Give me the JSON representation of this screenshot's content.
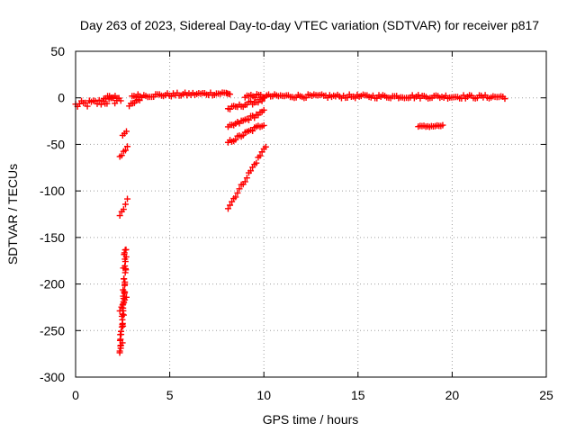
{
  "chart_data": {
    "type": "scatter",
    "title": "Day 263 of 2023, Sidereal Day-to-day VTEC variation (SDTVAR) for receiver p817",
    "xlabel": "GPS time / hours",
    "ylabel": "SDTVAR / TECUs",
    "xlim": [
      0,
      25
    ],
    "ylim": [
      -300,
      50
    ],
    "xticks": [
      0,
      5,
      10,
      15,
      20,
      25
    ],
    "yticks": [
      50,
      0,
      -50,
      -100,
      -150,
      -200,
      -250,
      -300
    ],
    "grid": true,
    "marker": "plus",
    "series": [
      {
        "name": "SDTVAR",
        "color": "#ff0000",
        "segments": [
          {
            "x_start": 0.0,
            "x_end": 2.4,
            "y_start": -8,
            "y_end": -2,
            "noise": 4
          },
          {
            "x_start": 1.5,
            "x_end": 2.3,
            "y_start": 0,
            "y_end": 1,
            "noise": 2
          },
          {
            "x_start": 2.5,
            "x_end": 2.7,
            "y_start": -40,
            "y_end": -36,
            "noise": 1
          },
          {
            "x_start": 2.35,
            "x_end": 2.75,
            "y_start": -65,
            "y_end": -52,
            "noise": 2
          },
          {
            "x_start": 2.35,
            "x_end": 2.75,
            "y_start": -128,
            "y_end": -110,
            "noise": 2
          },
          {
            "x_start": 2.4,
            "x_end": 2.65,
            "y_start": -275,
            "y_end": -162,
            "noise": 3
          },
          {
            "x_start": 2.35,
            "x_end": 2.7,
            "y_start": -228,
            "y_end": -212,
            "noise": 3
          },
          {
            "x_start": 2.85,
            "x_end": 3.4,
            "y_start": -9,
            "y_end": -2,
            "noise": 2
          },
          {
            "x_start": 3.0,
            "x_end": 8.0,
            "y_start": 2,
            "y_end": 5,
            "noise": 2
          },
          {
            "x_start": 8.05,
            "x_end": 8.2,
            "y_start": 5,
            "y_end": 4,
            "noise": 1
          },
          {
            "x_start": 8.1,
            "x_end": 10.0,
            "y_start": -12,
            "y_end": -2,
            "noise": 2
          },
          {
            "x_start": 8.1,
            "x_end": 10.0,
            "y_start": -32,
            "y_end": -15,
            "noise": 2
          },
          {
            "x_start": 8.1,
            "x_end": 10.0,
            "y_start": -48,
            "y_end": -28,
            "noise": 2
          },
          {
            "x_start": 8.1,
            "x_end": 10.1,
            "y_start": -118,
            "y_end": -52,
            "noise": 2
          },
          {
            "x_start": 9.0,
            "x_end": 22.8,
            "y_start": 2,
            "y_end": 1,
            "noise": 2
          },
          {
            "x_start": 18.2,
            "x_end": 19.5,
            "y_start": -31,
            "y_end": -30,
            "noise": 1
          }
        ]
      }
    ]
  }
}
